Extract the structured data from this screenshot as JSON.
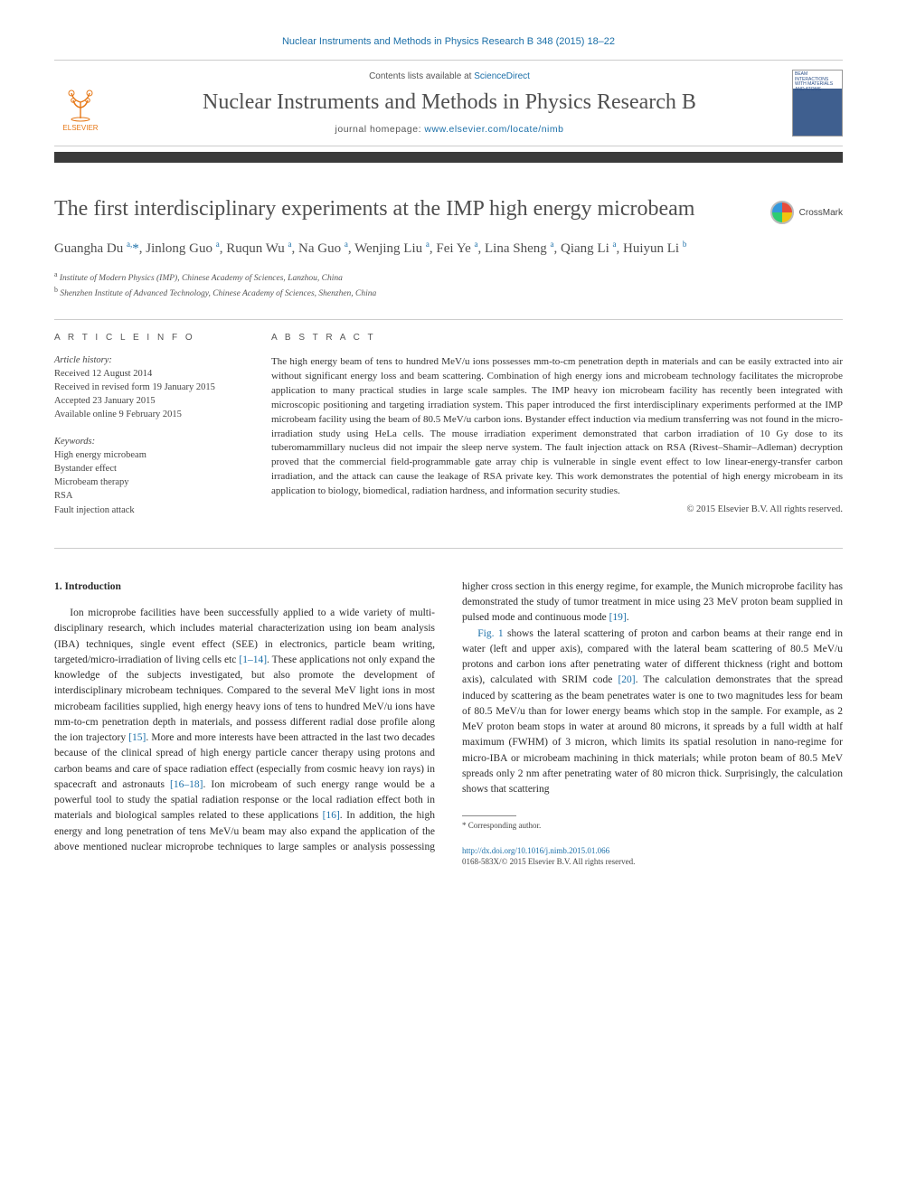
{
  "header": {
    "citation": "Nuclear Instruments and Methods in Physics Research B 348 (2015) 18–22",
    "contents_prefix": "Contents lists available at ",
    "contents_link": "ScienceDirect",
    "journal_title": "Nuclear Instruments and Methods in Physics Research B",
    "homepage_prefix": "journal homepage: ",
    "homepage_link": "www.elsevier.com/locate/nimb",
    "publisher": "ELSEVIER",
    "cover_text": "BEAM INTERACTIONS WITH MATERIALS AND ATOMS"
  },
  "article": {
    "title": "The first interdisciplinary experiments at the IMP high energy microbeam",
    "crossmark": "CrossMark",
    "authors_html": "Guangha Du <sup>a,</sup><span class='sym'>*</span>, Jinlong Guo <sup>a</sup>, Ruqun Wu <sup>a</sup>, Na Guo <sup>a</sup>, Wenjing Liu <sup>a</sup>, Fei Ye <sup>a</sup>, Lina Sheng <sup>a</sup>, Qiang Li <sup>a</sup>, Huiyun Li <sup>b</sup>",
    "affiliations": {
      "a": "Institute of Modern Physics (IMP), Chinese Academy of Sciences, Lanzhou, China",
      "b": "Shenzhen Institute of Advanced Technology, Chinese Academy of Sciences, Shenzhen, China"
    }
  },
  "info": {
    "heading": "A R T I C L E   I N F O",
    "history_label": "Article history:",
    "history": [
      "Received 12 August 2014",
      "Received in revised form 19 January 2015",
      "Accepted 23 January 2015",
      "Available online 9 February 2015"
    ],
    "keywords_label": "Keywords:",
    "keywords": [
      "High energy microbeam",
      "Bystander effect",
      "Microbeam therapy",
      "RSA",
      "Fault injection attack"
    ]
  },
  "abstract": {
    "heading": "A B S T R A C T",
    "text": "The high energy beam of tens to hundred MeV/u ions possesses mm-to-cm penetration depth in materials and can be easily extracted into air without significant energy loss and beam scattering. Combination of high energy ions and microbeam technology facilitates the microprobe application to many practical studies in large scale samples. The IMP heavy ion microbeam facility has recently been integrated with microscopic positioning and targeting irradiation system. This paper introduced the first interdisciplinary experiments performed at the IMP microbeam facility using the beam of 80.5 MeV/u carbon ions. Bystander effect induction via medium transferring was not found in the micro-irradiation study using HeLa cells. The mouse irradiation experiment demonstrated that carbon irradiation of 10 Gy dose to its tuberomammillary nucleus did not impair the sleep nerve system. The fault injection attack on RSA (Rivest–Shamir–Adleman) decryption proved that the commercial field-programmable gate array chip is vulnerable in single event effect to low linear-energy-transfer carbon irradiation, and the attack can cause the leakage of RSA private key. This work demonstrates the potential of high energy microbeam in its application to biology, biomedical, radiation hardness, and information security studies.",
    "copyright": "© 2015 Elsevier B.V. All rights reserved."
  },
  "body": {
    "section1_head": "1. Introduction",
    "p1": "Ion microprobe facilities have been successfully applied to a wide variety of multi-disciplinary research, which includes material characterization using ion beam analysis (IBA) techniques, single event effect (SEE) in electronics, particle beam writing, targeted/micro-irradiation of living cells etc ",
    "p1_ref1": "[1–14]",
    "p1b": ". These applications not only expand the knowledge of the subjects investigated, but also promote the development of interdisciplinary microbeam techniques. Compared to the several MeV light ions in most microbeam facilities supplied, high energy heavy ions of tens to hundred MeV/u ions have mm-to-cm penetration depth in materials, and possess different radial dose profile along the ion trajectory ",
    "p1_ref2": "[15]",
    "p1c": ". More and more interests have been attracted in the last two decades because of the clinical spread of high energy particle cancer therapy using protons and carbon beams and care of space radiation effect (especially from cosmic heavy ion rays) in spacecraft and astronauts ",
    "p1_ref3": "[16–18]",
    "p1d": ". Ion microbeam of such energy range would be a powerful tool to study the spatial radiation response or the local radiation effect both in materials and biological",
    "p2a": "samples related to these applications ",
    "p2_ref1": "[16]",
    "p2b": ". In addition, the high energy and long penetration of tens MeV/u beam may also expand the application of the above mentioned nuclear microprobe techniques to large samples or analysis possessing higher cross section in this energy regime, for example, the Munich microprobe facility has demonstrated the study of tumor treatment in mice using 23 MeV proton beam supplied in pulsed mode and continuous mode ",
    "p2_ref2": "[19]",
    "p2c": ".",
    "p3a": "",
    "p3_fig": "Fig. 1",
    "p3b": " shows the lateral scattering of proton and carbon beams at their range end in water (left and upper axis), compared with the lateral beam scattering of 80.5 MeV/u protons and carbon ions after penetrating water of different thickness (right and bottom axis), calculated with SRIM code ",
    "p3_ref1": "[20]",
    "p3c": ". The calculation demonstrates that the spread induced by scattering as the beam penetrates water is one to two magnitudes less for beam of 80.5 MeV/u than for lower energy beams which stop in the sample. For example, as 2 MeV proton beam stops in water at around 80 microns, it spreads by a full width at half maximum (FWHM) of 3 micron, which limits its spatial resolution in nano-regime for micro-IBA or microbeam machining in thick materials; while proton beam of 80.5 MeV spreads only 2 nm after penetrating water of 80 micron thick. Surprisingly, the calculation shows that scattering"
  },
  "footnote": {
    "marker": "*",
    "text": "Corresponding author."
  },
  "footer": {
    "doi": "http://dx.doi.org/10.1016/j.nimb.2015.01.066",
    "issn": "0168-583X/© 2015 Elsevier B.V. All rights reserved."
  },
  "colors": {
    "link": "#1b6fa8",
    "text": "#333333",
    "heading": "#4f4f4f",
    "rule": "#cccccc",
    "elsevier": "#e67817",
    "darkbar": "#3a3a3a"
  }
}
